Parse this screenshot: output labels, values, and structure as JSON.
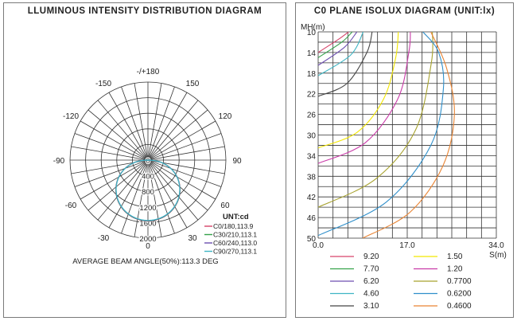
{
  "chart_data": [
    {
      "type": "polar",
      "title": "LLUMINOUS INTENSITY DISTRIBUTION DIAGRAM",
      "angle_labels": [
        "-/+180",
        "150",
        "120",
        "90",
        "60",
        "30",
        "0",
        "-30",
        "-60",
        "-90",
        "-120",
        "-150"
      ],
      "radial_ticks": [
        "0",
        "400",
        "800",
        "1200",
        "1600",
        "2000"
      ],
      "rmax": 2000,
      "legend_title": "UNT:cd",
      "series": [
        {
          "name": "C0/180,113.9",
          "color": "#d6456a",
          "peak": 1560
        },
        {
          "name": "C30/210,113.1",
          "color": "#35a24a",
          "peak": 1555
        },
        {
          "name": "C60/240,113.0",
          "color": "#6d4fb0",
          "peak": 1550
        },
        {
          "name": "C90/270,113.1",
          "color": "#3fb5c4",
          "peak": 1545
        }
      ],
      "footer": "AVERAGE BEAM ANGLE(50%):113.3 DEG"
    },
    {
      "type": "line",
      "title": "C0 PLANE ISOLUX DIAGRAM (UNIT:lx)",
      "ylabel": "MH(m)",
      "xlabel": "S(m)",
      "y_ticks": [
        "10",
        "14",
        "18",
        "22",
        "26",
        "30",
        "34",
        "38",
        "42",
        "46",
        "50"
      ],
      "x_ticks": [
        "0.0",
        "17.0",
        "34.0"
      ],
      "xlim": [
        0,
        34
      ],
      "ylim": [
        10,
        50
      ],
      "series": [
        {
          "name": "9.20",
          "color": "#d6456a",
          "x": [
            0,
            3.8,
            5.8
          ],
          "y": [
            14,
            11.5,
            10
          ]
        },
        {
          "name": "7.70",
          "color": "#35a24a",
          "x": [
            0,
            4.5,
            6.5
          ],
          "y": [
            15,
            12,
            10
          ]
        },
        {
          "name": "6.20",
          "color": "#6d4fb0",
          "x": [
            0,
            5.0,
            7.4
          ],
          "y": [
            16.5,
            13,
            10
          ]
        },
        {
          "name": "4.60",
          "color": "#3fb5c4",
          "x": [
            0,
            6.2,
            8.6
          ],
          "y": [
            18.5,
            14.5,
            10
          ]
        },
        {
          "name": "3.10",
          "color": "#444444",
          "x": [
            0,
            5.5,
            9.3,
            10.3
          ],
          "y": [
            22.5,
            20,
            14,
            10
          ]
        },
        {
          "name": "1.50",
          "color": "#f2e600",
          "x": [
            0,
            7.4,
            12.5,
            14.8,
            15.3
          ],
          "y": [
            32.5,
            29.5,
            23,
            15,
            10
          ]
        },
        {
          "name": "1.20",
          "color": "#c93aa8",
          "x": [
            0,
            9,
            15.2,
            17.3,
            17.6
          ],
          "y": [
            35.5,
            31.5,
            23,
            14,
            10
          ]
        },
        {
          "name": "0.7700",
          "color": "#a7a22e",
          "x": [
            0,
            11,
            18.6,
            21.6,
            21.8
          ],
          "y": [
            44,
            38.5,
            29,
            16,
            10
          ]
        },
        {
          "name": "0.6200",
          "color": "#2f8fca",
          "x": [
            0,
            13,
            21.5,
            23.9,
            23.0,
            20.0
          ],
          "y": [
            49.5,
            43,
            32,
            21,
            14,
            10
          ]
        },
        {
          "name": "0.4600",
          "color": "#e98433",
          "x": [
            8.5,
            17.5,
            23.8,
            26.0,
            24.5,
            21.5
          ],
          "y": [
            50,
            45,
            36,
            26,
            17,
            10
          ]
        }
      ]
    }
  ]
}
